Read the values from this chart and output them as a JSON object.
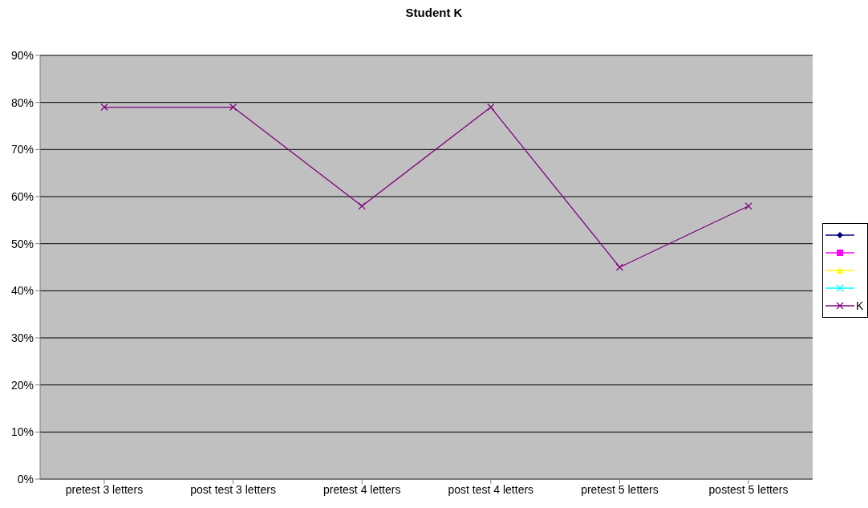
{
  "chart_data": {
    "type": "line",
    "title": "Student K",
    "categories": [
      "pretest 3 letters",
      "post test 3 letters",
      "pretest 4 letters",
      "post test 4 letters",
      "pretest 5 letters",
      "postest 5 letters"
    ],
    "series": [
      {
        "color": "#000080",
        "marker": "diamond",
        "values": [
          null,
          null,
          null,
          null,
          null,
          null
        ]
      },
      {
        "color": "#ff00ff",
        "marker": "square",
        "values": [
          null,
          null,
          null,
          null,
          null,
          null
        ]
      },
      {
        "color": "#ffff00",
        "marker": "triangle",
        "values": [
          null,
          null,
          null,
          null,
          null,
          null
        ]
      },
      {
        "color": "#00ffff",
        "marker": "cross",
        "values": [
          null,
          null,
          null,
          null,
          null,
          null
        ]
      },
      {
        "name": "K",
        "color": "#800080",
        "marker": "cross",
        "values": [
          79,
          79,
          58,
          79,
          45,
          58
        ]
      }
    ],
    "ylim": [
      0,
      90
    ],
    "yticks": [
      {
        "value": 0,
        "label": "0%"
      },
      {
        "value": 10,
        "label": "10%"
      },
      {
        "value": 20,
        "label": "20%"
      },
      {
        "value": 30,
        "label": "30%"
      },
      {
        "value": 40,
        "label": "40%"
      },
      {
        "value": 50,
        "label": "50%"
      },
      {
        "value": 60,
        "label": "60%"
      },
      {
        "value": 70,
        "label": "70%"
      },
      {
        "value": 80,
        "label": "80%"
      },
      {
        "value": 90,
        "label": "90%"
      }
    ],
    "grid": "y",
    "legend": "right"
  }
}
